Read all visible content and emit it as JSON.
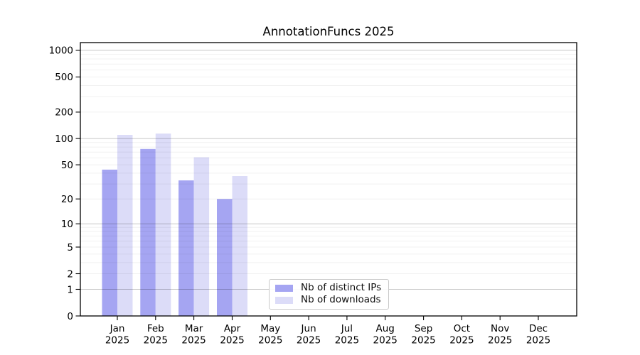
{
  "chart_data": {
    "type": "bar",
    "title": "AnnotationFuncs 2025",
    "categories": [
      "Jan",
      "Feb",
      "Mar",
      "Apr",
      "May",
      "Jun",
      "Jul",
      "Aug",
      "Sep",
      "Oct",
      "Nov",
      "Dec"
    ],
    "x_tick_year": "2025",
    "series": [
      {
        "name": "Nb of distinct IPs",
        "color": "#a5a5f2",
        "values": [
          44,
          76,
          33,
          20,
          null,
          null,
          null,
          null,
          null,
          null,
          null,
          null
        ]
      },
      {
        "name": "Nb of downloads",
        "color": "#dcdcf8",
        "values": [
          110,
          114,
          61,
          37,
          null,
          null,
          null,
          null,
          null,
          null,
          null,
          null
        ]
      }
    ],
    "y_axis": {
      "scale": "log10(value+1)",
      "tick_values": [
        0,
        1,
        2,
        5,
        10,
        20,
        50,
        100,
        200,
        500,
        1000
      ],
      "range": [
        0,
        1000
      ],
      "major_gridline_values": [
        1,
        10,
        100,
        1000
      ],
      "minor_gridlines": true
    },
    "xlabel": "",
    "ylabel": "",
    "grid": "horizontal",
    "legend_position": "lower-center-left"
  },
  "colors": {
    "bar_distinct_ips": "#a5a5f2",
    "bar_downloads": "#dcdcf8",
    "major_gridline": "rgba(0,0,0,0.22)",
    "minor_gridline": "rgba(0,0,0,0.055)",
    "axis_line": "#000000",
    "legend_border": "#c9c9c9",
    "background": "#ffffff"
  }
}
